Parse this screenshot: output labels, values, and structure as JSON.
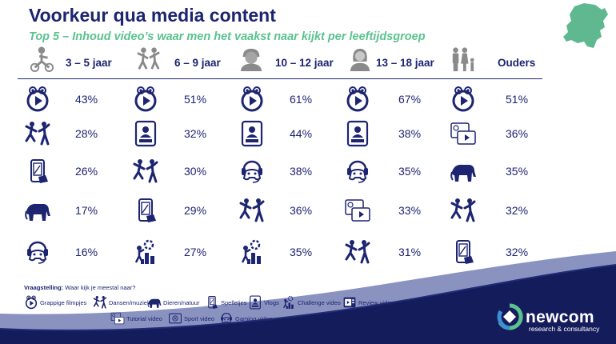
{
  "title": "Voorkeur qua media content",
  "subtitle": "Top 5 – Inhoud video’s waar men het vaakst naar kijkt per leeftijdsgroep",
  "groups": [
    {
      "label": "3 – 5 jaar",
      "icon": "child-bike-icon",
      "rows": [
        {
          "icon": "funny-video-icon",
          "pct": "43%"
        },
        {
          "icon": "dance-music-icon",
          "pct": "28%"
        },
        {
          "icon": "games-icon",
          "pct": "26%"
        },
        {
          "icon": "animals-nature-icon",
          "pct": "17%"
        },
        {
          "icon": "gaming-video-icon",
          "pct": "16%"
        }
      ]
    },
    {
      "label": "6 – 9 jaar",
      "icon": "children-playing-icon",
      "rows": [
        {
          "icon": "funny-video-icon",
          "pct": "51%"
        },
        {
          "icon": "vlog-icon",
          "pct": "32%"
        },
        {
          "icon": "dance-music-icon",
          "pct": "30%"
        },
        {
          "icon": "games-icon",
          "pct": "29%"
        },
        {
          "icon": "challenge-video-icon",
          "pct": "27%"
        }
      ]
    },
    {
      "label": "10 – 12 jaar",
      "icon": "preteen-icon",
      "rows": [
        {
          "icon": "funny-video-icon",
          "pct": "61%"
        },
        {
          "icon": "vlog-icon",
          "pct": "44%"
        },
        {
          "icon": "gaming-video-icon",
          "pct": "38%"
        },
        {
          "icon": "dance-music-icon",
          "pct": "36%"
        },
        {
          "icon": "challenge-video-icon",
          "pct": "35%"
        }
      ]
    },
    {
      "label": "13 – 18 jaar",
      "icon": "teen-icon",
      "rows": [
        {
          "icon": "funny-video-icon",
          "pct": "67%"
        },
        {
          "icon": "vlog-icon",
          "pct": "38%"
        },
        {
          "icon": "gaming-video-icon",
          "pct": "35%"
        },
        {
          "icon": "tutorial-video-icon",
          "pct": "33%"
        },
        {
          "icon": "dance-music-icon",
          "pct": "31%"
        }
      ]
    },
    {
      "label": "Ouders",
      "icon": "family-icon",
      "rows": [
        {
          "icon": "funny-video-icon",
          "pct": "51%"
        },
        {
          "icon": "tutorial-video-icon",
          "pct": "36%"
        },
        {
          "icon": "animals-nature-icon",
          "pct": "35%"
        },
        {
          "icon": "dance-music-icon",
          "pct": "32%"
        },
        {
          "icon": "games-icon",
          "pct": "32%"
        }
      ]
    }
  ],
  "question": {
    "label": "Vraagstelling:",
    "text": "Waar kijk je meestal naar?"
  },
  "legend": [
    {
      "icon": "funny-video-icon",
      "label": "Grappige filmpjes"
    },
    {
      "icon": "dance-music-icon",
      "label": "Dansen/muziek"
    },
    {
      "icon": "animals-nature-icon",
      "label": "Dieren/natuur"
    },
    {
      "icon": "games-icon",
      "label": "Spelletjes"
    },
    {
      "icon": "vlog-icon",
      "label": "Vlogs"
    },
    {
      "icon": "challenge-video-icon",
      "label": "Challenge video"
    },
    {
      "icon": "review-video-icon",
      "label": "Review video"
    },
    {
      "icon": "tutorial-video-icon",
      "label": "Tutorial video"
    },
    {
      "icon": "sport-video-icon",
      "label": "Sport video"
    },
    {
      "icon": "gaming-video-icon",
      "label": "Gaming video"
    }
  ],
  "brand": {
    "name": "newcom",
    "tagline": "research & consultancy"
  },
  "colors": {
    "navy": "#1d2470",
    "green": "#5bc28e",
    "map": "#5fb88f",
    "footer": "#151c5c"
  }
}
